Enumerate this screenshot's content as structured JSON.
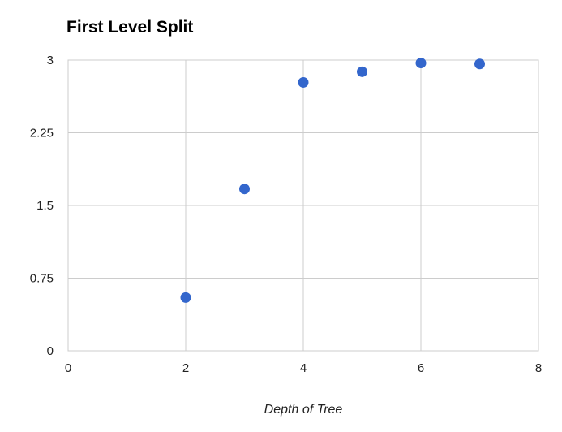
{
  "chart_data": {
    "type": "scatter",
    "title": "First Level Split",
    "xlabel": "Depth of Tree",
    "ylabel": "",
    "xlim": [
      0,
      8
    ],
    "ylim": [
      0,
      3
    ],
    "x_ticks": [
      "0",
      "2",
      "4",
      "6",
      "8"
    ],
    "y_ticks": [
      "0",
      "0.75",
      "1.5",
      "2.25",
      "3"
    ],
    "grid": true,
    "legend": "none",
    "series": [
      {
        "color": "#3366cc",
        "points": [
          {
            "x": 2,
            "y": 0.55
          },
          {
            "x": 3,
            "y": 1.67
          },
          {
            "x": 4,
            "y": 2.77
          },
          {
            "x": 5,
            "y": 2.88
          },
          {
            "x": 6,
            "y": 2.97
          },
          {
            "x": 7,
            "y": 2.96
          }
        ]
      }
    ]
  }
}
